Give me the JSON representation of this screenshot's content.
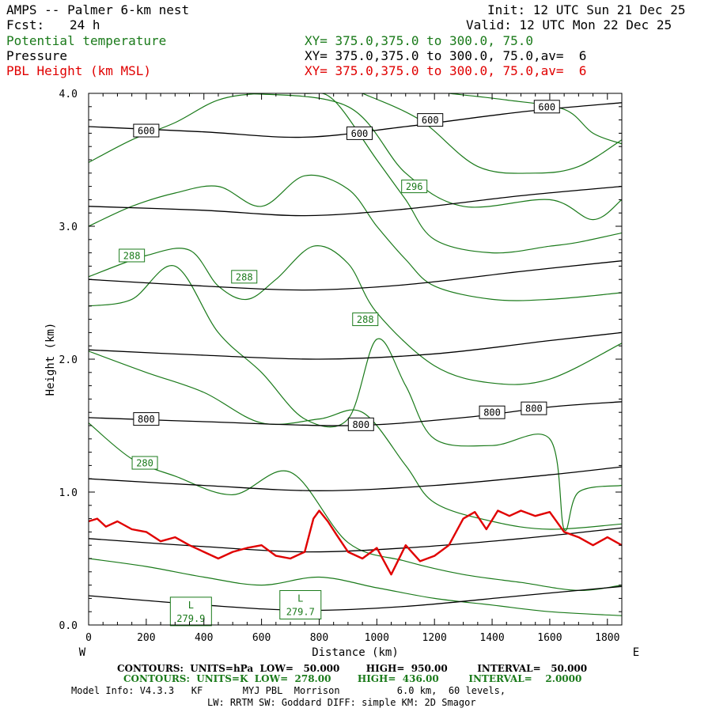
{
  "header": {
    "title": "AMPS -- Palmer 6-km nest",
    "fcst_label": "Fcst:",
    "fcst_value": "24 h",
    "init": "Init: 12 UTC Sun 21 Dec 25",
    "valid": "Valid: 12 UTC Mon 22 Dec 25",
    "field1": "Potential temperature",
    "field2": "Pressure",
    "field3": "PBL Height (km MSL)",
    "xy1": "XY= 375.0,375.0 to 300.0, 75.0",
    "xy2": "XY= 375.0,375.0 to 300.0, 75.0,av=  6",
    "xy3": "XY= 375.0,375.0 to 300.0, 75.0,av=  6"
  },
  "colors": {
    "theta": "#1a7a1a",
    "pressure": "#000000",
    "pbl": "#e00000"
  },
  "chart_data": {
    "type": "line",
    "title": "AMPS -- Palmer 6-km nest",
    "xlabel": "Distance (km)",
    "ylabel": "Height (km)",
    "xlim": [
      0,
      1850
    ],
    "ylim": [
      0.0,
      4.0
    ],
    "x_ticks": [
      0,
      200,
      400,
      600,
      800,
      1000,
      1200,
      1400,
      1600,
      1800
    ],
    "x_tick_labels": [
      "0",
      "200",
      "400",
      "600",
      "800",
      "1000",
      "1200",
      "1400",
      "1600",
      "1800"
    ],
    "y_ticks": [
      0,
      1,
      2,
      3,
      4
    ],
    "y_tick_labels": [
      "0.0",
      "1.0",
      "2.0",
      "3.0",
      "4.0"
    ],
    "x_end_left": "W",
    "x_end_right": "E",
    "series": [
      {
        "name": "Pressure",
        "units": "hPa",
        "color": "#000000",
        "lines": [
          {
            "level": 950,
            "x": [
              0,
              400,
              750,
              1100,
              1500,
              1850
            ],
            "y": [
              0.22,
              0.15,
              0.11,
              0.14,
              0.22,
              0.29
            ]
          },
          {
            "level": 900,
            "x": [
              0,
              400,
              750,
              1100,
              1500,
              1850
            ],
            "y": [
              0.65,
              0.59,
              0.55,
              0.58,
              0.65,
              0.73
            ]
          },
          {
            "level": 850,
            "x": [
              0,
              400,
              800,
              1200,
              1600,
              1850
            ],
            "y": [
              1.1,
              1.05,
              1.01,
              1.05,
              1.13,
              1.19
            ]
          },
          {
            "level": 800,
            "x": [
              0,
              400,
              900,
              1300,
              1600,
              1850
            ],
            "y": [
              1.56,
              1.53,
              1.5,
              1.56,
              1.64,
              1.68
            ]
          },
          {
            "level": 750,
            "x": [
              0,
              400,
              800,
              1200,
              1600,
              1850
            ],
            "y": [
              2.07,
              2.03,
              2.0,
              2.04,
              2.14,
              2.2
            ]
          },
          {
            "level": 700,
            "x": [
              0,
              400,
              750,
              1100,
              1500,
              1850
            ],
            "y": [
              2.6,
              2.55,
              2.52,
              2.56,
              2.66,
              2.74
            ]
          },
          {
            "level": 650,
            "x": [
              0,
              400,
              750,
              1100,
              1500,
              1850
            ],
            "y": [
              3.15,
              3.12,
              3.08,
              3.13,
              3.23,
              3.3
            ]
          },
          {
            "level": 600,
            "x": [
              0,
              400,
              750,
              1100,
              1500,
              1850
            ],
            "y": [
              3.75,
              3.71,
              3.67,
              3.75,
              3.86,
              3.93
            ]
          }
        ],
        "labels": [
          {
            "text": "600",
            "x": 200,
            "y": 3.72
          },
          {
            "text": "600",
            "x": 940,
            "y": 3.7
          },
          {
            "text": "600",
            "x": 1185,
            "y": 3.8
          },
          {
            "text": "600",
            "x": 1590,
            "y": 3.9
          },
          {
            "text": "800",
            "x": 200,
            "y": 1.55
          },
          {
            "text": "800",
            "x": 945,
            "y": 1.51
          },
          {
            "text": "800",
            "x": 1400,
            "y": 1.6
          },
          {
            "text": "800",
            "x": 1545,
            "y": 1.63
          }
        ]
      },
      {
        "name": "Potential temperature",
        "units": "K",
        "color": "#1a7a1a",
        "lines": [
          {
            "x": [
              0,
              200,
              400,
              600,
              800,
              1000,
              1200,
              1400,
              1600,
              1850
            ],
            "y": [
              0.5,
              0.44,
              0.36,
              0.3,
              0.36,
              0.28,
              0.2,
              0.15,
              0.1,
              0.07
            ]
          },
          {
            "x": [
              0,
              150,
              300,
              500,
              700,
              900,
              1100,
              1300,
              1500,
              1700,
              1850
            ],
            "y": [
              1.52,
              1.25,
              1.12,
              0.98,
              1.15,
              0.62,
              0.48,
              0.38,
              0.32,
              0.26,
              0.3
            ]
          },
          {
            "x": [
              0,
              200,
              400,
              600,
              800,
              950,
              1100,
              1200,
              1400,
              1600,
              1850
            ],
            "y": [
              2.06,
              1.9,
              1.75,
              1.52,
              1.55,
              1.6,
              1.2,
              0.92,
              0.78,
              0.72,
              0.76
            ]
          },
          {
            "x": [
              0,
              150,
              300,
              450,
              600,
              750,
              900,
              1000,
              1100,
              1200,
              1400,
              1600,
              1650,
              1700,
              1850
            ],
            "y": [
              2.4,
              2.45,
              2.7,
              2.2,
              1.9,
              1.55,
              1.55,
              2.15,
              1.8,
              1.4,
              1.35,
              1.4,
              0.72,
              1.0,
              1.05
            ]
          },
          {
            "x": [
              0,
              200,
              350,
              450,
              550,
              650,
              780,
              900,
              1000,
              1200,
              1400,
              1600,
              1850
            ],
            "y": [
              2.62,
              2.78,
              2.82,
              2.55,
              2.45,
              2.6,
              2.85,
              2.72,
              2.35,
              1.95,
              1.82,
              1.85,
              2.12
            ]
          },
          {
            "x": [
              0,
              150,
              300,
              450,
              600,
              750,
              900,
              1000,
              1100,
              1200,
              1400,
              1600,
              1850
            ],
            "y": [
              3.0,
              3.15,
              3.25,
              3.3,
              3.15,
              3.38,
              3.28,
              3.0,
              2.75,
              2.55,
              2.45,
              2.45,
              2.5
            ]
          },
          {
            "x": [
              0,
              150,
              300,
              450,
              600,
              750,
              850,
              1000,
              1100,
              1200,
              1400,
              1600,
              1700,
              1850
            ],
            "y": [
              3.48,
              3.65,
              3.78,
              3.95,
              4.0,
              4.0,
              3.95,
              3.5,
              3.2,
              2.9,
              2.8,
              2.85,
              2.88,
              2.95
            ]
          },
          {
            "x": [
              350,
              550,
              900,
              1100,
              1300,
              1600,
              1750,
              1850
            ],
            "y": [
              4.0,
              4.0,
              3.9,
              3.4,
              3.15,
              3.2,
              3.05,
              3.2
            ]
          },
          {
            "x": [
              950,
              1150,
              1350,
              1550,
              1700,
              1850
            ],
            "y": [
              4.0,
              3.8,
              3.45,
              3.4,
              3.45,
              3.65
            ]
          },
          {
            "x": [
              1250,
              1450,
              1650,
              1750,
              1850
            ],
            "y": [
              4.0,
              3.95,
              3.88,
              3.7,
              3.62
            ]
          }
        ],
        "labels": [
          {
            "text": "296",
            "x": 1130,
            "y": 3.3
          },
          {
            "text": "288",
            "x": 150,
            "y": 2.78
          },
          {
            "text": "288",
            "x": 540,
            "y": 2.62
          },
          {
            "text": "288",
            "x": 960,
            "y": 2.3
          },
          {
            "text": "280",
            "x": 195,
            "y": 1.22
          }
        ]
      },
      {
        "name": "PBL Height (km MSL)",
        "units": "km",
        "color": "#e00000",
        "x": [
          0,
          30,
          60,
          100,
          150,
          200,
          250,
          300,
          350,
          400,
          450,
          500,
          550,
          600,
          650,
          700,
          750,
          780,
          800,
          830,
          860,
          900,
          950,
          1000,
          1050,
          1100,
          1150,
          1200,
          1250,
          1300,
          1340,
          1380,
          1420,
          1460,
          1500,
          1550,
          1600,
          1650,
          1700,
          1750,
          1800,
          1850
        ],
        "y": [
          0.78,
          0.8,
          0.74,
          0.78,
          0.72,
          0.7,
          0.63,
          0.66,
          0.6,
          0.55,
          0.5,
          0.55,
          0.58,
          0.6,
          0.52,
          0.5,
          0.55,
          0.8,
          0.86,
          0.78,
          0.68,
          0.55,
          0.5,
          0.58,
          0.38,
          0.6,
          0.48,
          0.52,
          0.6,
          0.8,
          0.85,
          0.72,
          0.86,
          0.82,
          0.86,
          0.82,
          0.85,
          0.7,
          0.66,
          0.6,
          0.66,
          0.6
        ]
      }
    ],
    "annotations": [
      {
        "text": "L",
        "sub": "279.9",
        "x": 355,
        "y": 0.09
      },
      {
        "text": "L",
        "sub": "279.7",
        "x": 735,
        "y": 0.14
      }
    ]
  },
  "footer": {
    "line1_label": "CONTOURS:  UNITS=hPa  LOW=   50.000        HIGH=  950.00         INTERVAL=   50.000",
    "line2_label": "CONTOURS:  UNITS=K  LOW=  278.00        HIGH=  436.00         INTERVAL=    2.0000",
    "line3": "Model Info: V4.3.3   KF       MYJ PBL  Morrison          6.0 km,  60 levels,",
    "line4": "LW: RRTM SW: Goddard DIFF: simple KM: 2D Smagor"
  }
}
